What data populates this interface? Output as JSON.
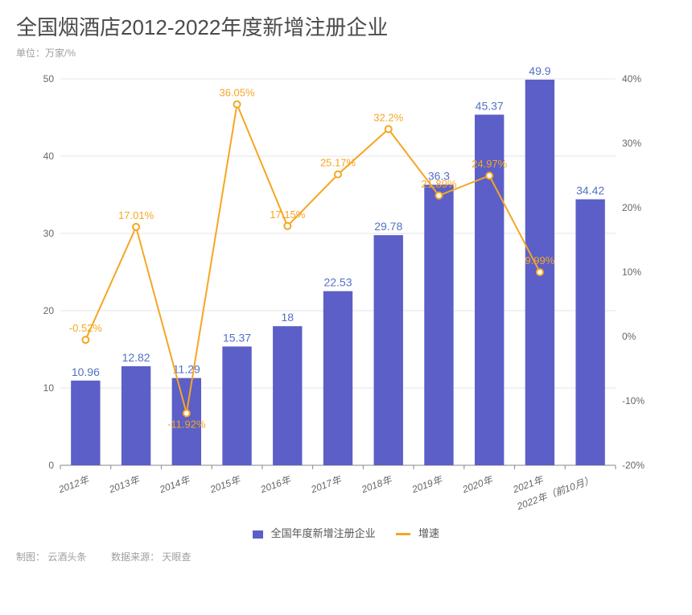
{
  "title": "全国烟酒店2012-2022年度新增注册企业",
  "unit_label": "单位：万家/%",
  "chart": {
    "type": "bar+line",
    "categories": [
      "2012年",
      "2013年",
      "2014年",
      "2015年",
      "2016年",
      "2017年",
      "2018年",
      "2019年",
      "2020年",
      "2021年",
      "2022年（前10月）"
    ],
    "bar_values": [
      10.96,
      12.82,
      11.29,
      15.37,
      18,
      22.53,
      29.78,
      36.3,
      45.37,
      49.9,
      34.42
    ],
    "bar_labels": [
      "10.96",
      "12.82",
      "11.29",
      "15.37",
      "18",
      "22.53",
      "29.78",
      "36.3",
      "45.37",
      "49.9",
      "34.42"
    ],
    "line_values": [
      -0.52,
      17.01,
      -11.92,
      36.05,
      17.15,
      25.17,
      32.2,
      21.89,
      24.97,
      9.99,
      null
    ],
    "line_labels": [
      "-0.52%",
      "17.01%",
      "-11.92%",
      "36.05%",
      "17.15%",
      "25.17%",
      "32.2%",
      "21.89%",
      "24.97%",
      "9.99%",
      ""
    ],
    "bar_color": "#5b5fc7",
    "line_color": "#f5a623",
    "bar_label_color": "#5470c6",
    "y_left": {
      "min": 0,
      "max": 50,
      "ticks": [
        0,
        10,
        20,
        30,
        40,
        50
      ]
    },
    "y_right": {
      "min": -20,
      "max": 40,
      "ticks": [
        -20,
        -10,
        0,
        10,
        20,
        30,
        40
      ],
      "suffix": "%"
    },
    "grid_color": "#e6e6e6",
    "background_color": "#ffffff",
    "bar_width_ratio": 0.58,
    "line_width": 2,
    "marker_radius": 4,
    "axis_text_color": "#666666"
  },
  "legend": {
    "bar": "全国年度新增注册企业",
    "line": "增速"
  },
  "footer": {
    "credit_label": "制图：",
    "credit_value": "云酒头条",
    "source_label": "数据来源：",
    "source_value": "天眼查"
  }
}
